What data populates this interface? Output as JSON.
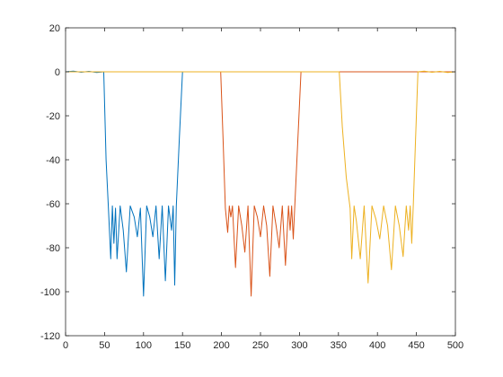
{
  "chart_data": {
    "type": "line",
    "title": "",
    "xlabel": "",
    "ylabel": "",
    "xlim": [
      0,
      500
    ],
    "ylim": [
      -120,
      20
    ],
    "xticks": [
      0,
      50,
      100,
      150,
      200,
      250,
      300,
      350,
      400,
      450,
      500
    ],
    "yticks": [
      20,
      0,
      -20,
      -40,
      -60,
      -80,
      -100,
      -120
    ],
    "xtick_labels": [
      "0",
      "50",
      "100",
      "150",
      "200",
      "250",
      "300",
      "350",
      "400",
      "450",
      "500"
    ],
    "ytick_labels": [
      "20",
      "0",
      "-20",
      "-40",
      "-60",
      "-80",
      "-100",
      "-120"
    ],
    "grid": false,
    "series": [
      {
        "color": "#0072BD",
        "x": [
          0,
          10,
          20,
          30,
          40,
          49,
          52,
          55,
          58,
          60,
          62,
          64,
          66,
          70,
          74,
          78,
          83,
          88,
          92,
          96,
          100,
          104,
          108,
          112,
          116,
          120,
          124,
          128,
          132,
          136,
          138,
          140,
          142,
          146,
          150,
          200,
          250,
          300,
          350,
          400,
          450,
          500
        ],
        "y": [
          0,
          0.3,
          -0.2,
          0.2,
          -0.3,
          0,
          -40,
          -62,
          -85,
          -61,
          -78,
          -62,
          -85,
          -61,
          -72,
          -91,
          -61,
          -66,
          -75,
          -62,
          -102,
          -61,
          -66,
          -75,
          -61,
          -85,
          -61,
          -95,
          -61,
          -72,
          -61,
          -97,
          -61,
          -30,
          0,
          0,
          0,
          0,
          0,
          0,
          0,
          0
        ]
      },
      {
        "color": "#D95319",
        "x": [
          0,
          50,
          100,
          150,
          199,
          202,
          205,
          208,
          210,
          212,
          214,
          218,
          222,
          226,
          230,
          234,
          238,
          242,
          246,
          250,
          254,
          258,
          262,
          266,
          270,
          274,
          278,
          282,
          286,
          288,
          290,
          292,
          294,
          298,
          302,
          350,
          400,
          450,
          500
        ],
        "y": [
          0,
          0,
          0,
          0,
          0,
          -30,
          -62,
          -73,
          -61,
          -66,
          -61,
          -89,
          -61,
          -70,
          -82,
          -61,
          -102,
          -61,
          -66,
          -75,
          -61,
          -70,
          -93,
          -61,
          -70,
          -80,
          -61,
          -88,
          -61,
          -72,
          -61,
          -76,
          -61,
          -30,
          0,
          0,
          0,
          0,
          0
        ]
      },
      {
        "color": "#EDB120",
        "x": [
          0,
          50,
          100,
          150,
          200,
          250,
          300,
          351,
          355,
          360,
          365,
          367,
          370,
          373,
          378,
          383,
          388,
          393,
          398,
          403,
          408,
          413,
          418,
          423,
          428,
          433,
          437,
          440,
          442,
          444,
          446,
          449,
          452,
          460,
          470,
          480,
          490,
          500
        ],
        "y": [
          0,
          0,
          0,
          0,
          0,
          0,
          0,
          0,
          -25,
          -48,
          -62,
          -85,
          -61,
          -68,
          -85,
          -61,
          -96,
          -61,
          -67,
          -76,
          -61,
          -70,
          -90,
          -61,
          -70,
          -84,
          -61,
          -72,
          -61,
          -78,
          -61,
          -30,
          0,
          0.3,
          -0.2,
          0.2,
          -0.3,
          0
        ]
      }
    ]
  }
}
